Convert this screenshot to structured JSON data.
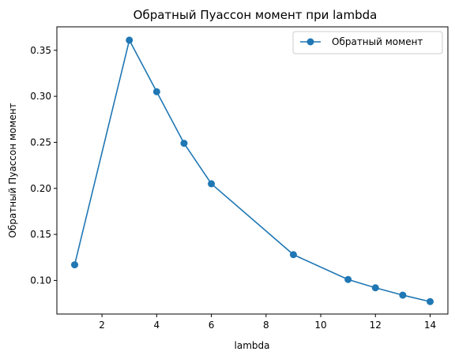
{
  "chart_data": {
    "type": "line",
    "title": "Обратный Пуассон момент  при lambda",
    "xlabel": "lambda",
    "ylabel": "Обратный Пуассон момент",
    "xlim": [
      0.35,
      14.65
    ],
    "ylim": [
      0.0635,
      0.3755
    ],
    "xticks": [
      2,
      4,
      6,
      8,
      10,
      12,
      14
    ],
    "yticks": [
      0.1,
      0.15,
      0.2,
      0.25,
      0.3,
      0.35
    ],
    "xtick_labels": [
      "2",
      "4",
      "6",
      "8",
      "10",
      "12",
      "14"
    ],
    "ytick_labels": [
      "0.10",
      "0.15",
      "0.20",
      "0.25",
      "0.30",
      "0.35"
    ],
    "grid": false,
    "legend_position": "top-right",
    "series": [
      {
        "name": "Обратный момент",
        "color": "#1f77b4",
        "marker": "circle",
        "x": [
          1,
          3,
          4,
          5,
          6,
          9,
          11,
          12,
          13,
          14
        ],
        "y": [
          0.117,
          0.361,
          0.305,
          0.249,
          0.205,
          0.128,
          0.101,
          0.092,
          0.084,
          0.077
        ]
      }
    ]
  }
}
